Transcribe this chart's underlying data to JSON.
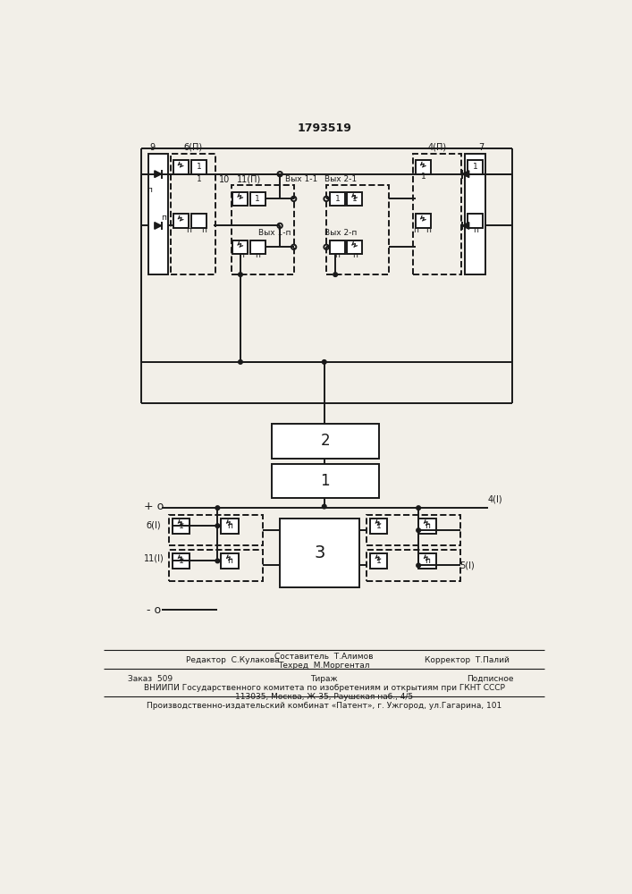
{
  "title": "1793519",
  "bg": "#f2efe8",
  "lc": "#1a1a1a",
  "footer": {
    "editor": "Редактор  С.Кулакова",
    "composer": "Составитель  Т.Алимов",
    "tech": "Техред  М.Моргентал",
    "corrector": "Корректор  Т.Палий",
    "order": "Заказ  509",
    "tiraj": "Тираж",
    "podp": "Подписное",
    "vniip1": "ВНИИПИ Государственного комитета по изобретениям и открытиям при ГКНТ СССР",
    "vniip2": "113035, Москва, Ж-35, Раушская наб., 4/5",
    "proizv": "Производственно-издательский комбинат «Патент», г. Ужгород, ул.Гагарина, 101"
  }
}
